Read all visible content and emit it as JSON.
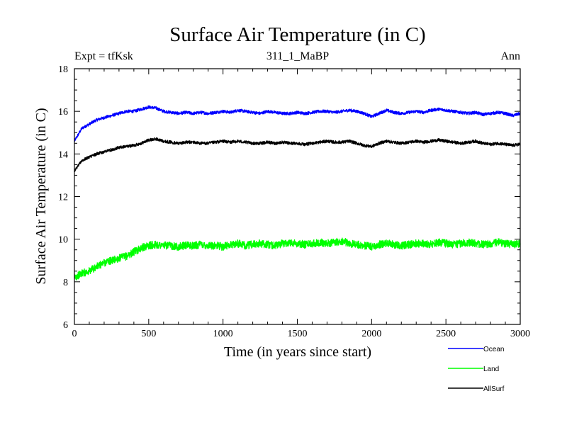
{
  "chart_data": {
    "type": "line",
    "title": "Surface Air Temperature (in C)",
    "subtitle_left": "Expt = tfKsk",
    "subtitle_center": "311_1_MaBP",
    "subtitle_right": "Ann",
    "xlabel": "Time (in years since start)",
    "ylabel": "Surface Air Temperature (in C)",
    "xlim": [
      0,
      3000
    ],
    "ylim": [
      6,
      18
    ],
    "xticks": [
      0,
      500,
      1000,
      1500,
      2000,
      2500,
      3000
    ],
    "yticks": [
      6,
      8,
      10,
      12,
      14,
      16,
      18
    ],
    "x": [
      0,
      50,
      100,
      150,
      200,
      250,
      300,
      350,
      400,
      450,
      500,
      550,
      600,
      650,
      700,
      750,
      800,
      850,
      900,
      950,
      1000,
      1050,
      1100,
      1150,
      1200,
      1250,
      1300,
      1350,
      1400,
      1450,
      1500,
      1550,
      1600,
      1650,
      1700,
      1750,
      1800,
      1850,
      1900,
      1950,
      2000,
      2050,
      2100,
      2150,
      2200,
      2250,
      2300,
      2350,
      2400,
      2450,
      2500,
      2550,
      2600,
      2650,
      2700,
      2750,
      2800,
      2850,
      2900,
      2950,
      3000
    ],
    "series": [
      {
        "name": "Ocean",
        "color": "#0000ff",
        "values": [
          14.6,
          15.2,
          15.4,
          15.6,
          15.7,
          15.8,
          15.9,
          16.0,
          16.0,
          16.1,
          16.2,
          16.15,
          16.0,
          15.95,
          15.9,
          15.95,
          15.9,
          15.95,
          15.9,
          15.95,
          16.0,
          15.95,
          16.05,
          16.0,
          15.95,
          15.9,
          16.0,
          15.95,
          15.9,
          15.9,
          15.95,
          15.9,
          15.95,
          16.0,
          16.0,
          15.95,
          16.0,
          16.05,
          16.0,
          15.9,
          15.75,
          15.9,
          16.05,
          15.95,
          15.9,
          15.95,
          16.0,
          15.95,
          16.05,
          16.1,
          16.05,
          16.0,
          15.95,
          15.9,
          15.95,
          15.85,
          15.9,
          15.95,
          15.9,
          15.8,
          15.9
        ]
      },
      {
        "name": "Land",
        "color": "#00ff00",
        "values": [
          8.2,
          8.4,
          8.5,
          8.7,
          8.9,
          9.0,
          9.1,
          9.2,
          9.4,
          9.6,
          9.7,
          9.75,
          9.7,
          9.7,
          9.65,
          9.7,
          9.7,
          9.75,
          9.7,
          9.7,
          9.65,
          9.75,
          9.8,
          9.7,
          9.75,
          9.8,
          9.75,
          9.7,
          9.8,
          9.85,
          9.8,
          9.75,
          9.8,
          9.85,
          9.8,
          9.85,
          9.9,
          9.8,
          9.75,
          9.7,
          9.65,
          9.75,
          9.8,
          9.75,
          9.7,
          9.75,
          9.8,
          9.8,
          9.75,
          9.85,
          9.8,
          9.75,
          9.8,
          9.85,
          9.8,
          9.75,
          9.8,
          9.85,
          9.8,
          9.75,
          9.8
        ]
      },
      {
        "name": "AllSurf",
        "color": "#000000",
        "values": [
          13.2,
          13.7,
          13.85,
          14.0,
          14.1,
          14.2,
          14.3,
          14.35,
          14.4,
          14.5,
          14.65,
          14.7,
          14.6,
          14.55,
          14.5,
          14.55,
          14.55,
          14.5,
          14.5,
          14.55,
          14.6,
          14.55,
          14.6,
          14.55,
          14.5,
          14.5,
          14.55,
          14.5,
          14.55,
          14.5,
          14.5,
          14.45,
          14.5,
          14.55,
          14.6,
          14.55,
          14.55,
          14.6,
          14.5,
          14.4,
          14.35,
          14.5,
          14.6,
          14.55,
          14.5,
          14.55,
          14.6,
          14.55,
          14.6,
          14.65,
          14.6,
          14.55,
          14.5,
          14.55,
          14.6,
          14.5,
          14.45,
          14.5,
          14.45,
          14.4,
          14.45
        ]
      }
    ]
  }
}
